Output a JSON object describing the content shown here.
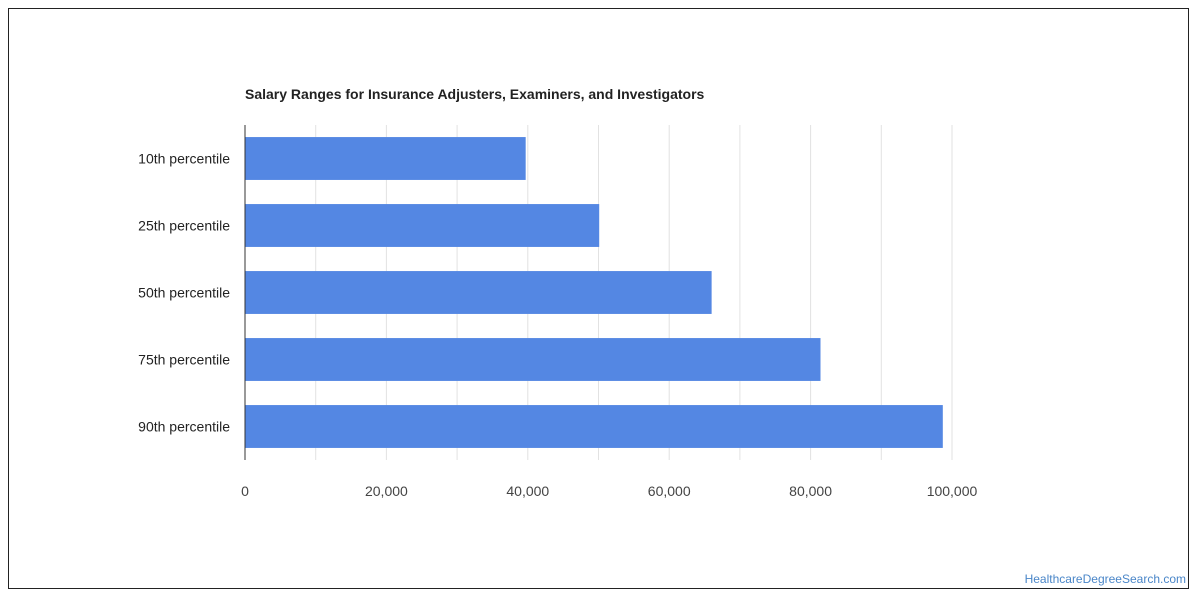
{
  "chart_data": {
    "type": "bar",
    "orientation": "horizontal",
    "title": "Salary Ranges for Insurance Adjusters, Examiners, and Investigators",
    "categories": [
      "10th percentile",
      "25th percentile",
      "50th percentile",
      "75th percentile",
      "90th percentile"
    ],
    "values": [
      39700,
      50100,
      66000,
      81400,
      98700
    ],
    "xlim": [
      0,
      100000
    ],
    "xticks": [
      0,
      20000,
      40000,
      60000,
      80000,
      100000
    ],
    "xtick_labels": [
      "0",
      "20,000",
      "40,000",
      "60,000",
      "80,000",
      "100,000"
    ],
    "grid": true,
    "bar_color": "#5487e3"
  },
  "watermark": "HealthcareDegreeSearch.com"
}
